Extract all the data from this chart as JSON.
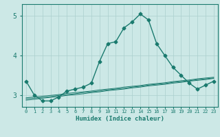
{
  "title": "",
  "xlabel": "Humidex (Indice chaleur)",
  "ylabel": "",
  "background_color": "#cce8e6",
  "grid_color": "#aacfcd",
  "line_color": "#1a7a6e",
  "x_values": [
    0,
    1,
    2,
    3,
    4,
    5,
    6,
    7,
    8,
    9,
    10,
    11,
    12,
    13,
    14,
    15,
    16,
    17,
    18,
    19,
    20,
    21,
    22,
    23
  ],
  "series": {
    "main": [
      3.35,
      3.0,
      2.85,
      2.85,
      2.95,
      3.1,
      3.15,
      3.2,
      3.3,
      3.85,
      4.3,
      4.35,
      4.7,
      4.85,
      5.05,
      4.9,
      4.3,
      4.0,
      3.7,
      3.5,
      3.3,
      3.15,
      3.25,
      3.35
    ],
    "trend1": [
      2.93,
      2.95,
      2.97,
      2.99,
      3.01,
      3.04,
      3.06,
      3.08,
      3.1,
      3.13,
      3.15,
      3.17,
      3.2,
      3.22,
      3.24,
      3.27,
      3.29,
      3.31,
      3.34,
      3.36,
      3.38,
      3.41,
      3.43,
      3.45
    ],
    "trend2": [
      2.9,
      2.92,
      2.94,
      2.96,
      2.99,
      3.01,
      3.03,
      3.06,
      3.08,
      3.1,
      3.13,
      3.15,
      3.17,
      3.2,
      3.22,
      3.25,
      3.27,
      3.29,
      3.32,
      3.34,
      3.36,
      3.39,
      3.41,
      3.43
    ],
    "trend3": [
      2.87,
      2.89,
      2.92,
      2.94,
      2.96,
      2.99,
      3.01,
      3.03,
      3.06,
      3.08,
      3.11,
      3.13,
      3.15,
      3.18,
      3.2,
      3.23,
      3.25,
      3.27,
      3.3,
      3.32,
      3.35,
      3.37,
      3.39,
      3.42
    ]
  },
  "ylim": [
    2.7,
    5.3
  ],
  "xlim": [
    -0.5,
    23.5
  ],
  "yticks": [
    3,
    4,
    5
  ],
  "xtick_labels": [
    "0",
    "1",
    "2",
    "3",
    "4",
    "5",
    "6",
    "7",
    "8",
    "9",
    "10",
    "11",
    "12",
    "13",
    "14",
    "15",
    "16",
    "17",
    "18",
    "19",
    "20",
    "21",
    "22",
    "23"
  ],
  "marker": "D",
  "markersize": 2.5,
  "linewidth": 1.0
}
